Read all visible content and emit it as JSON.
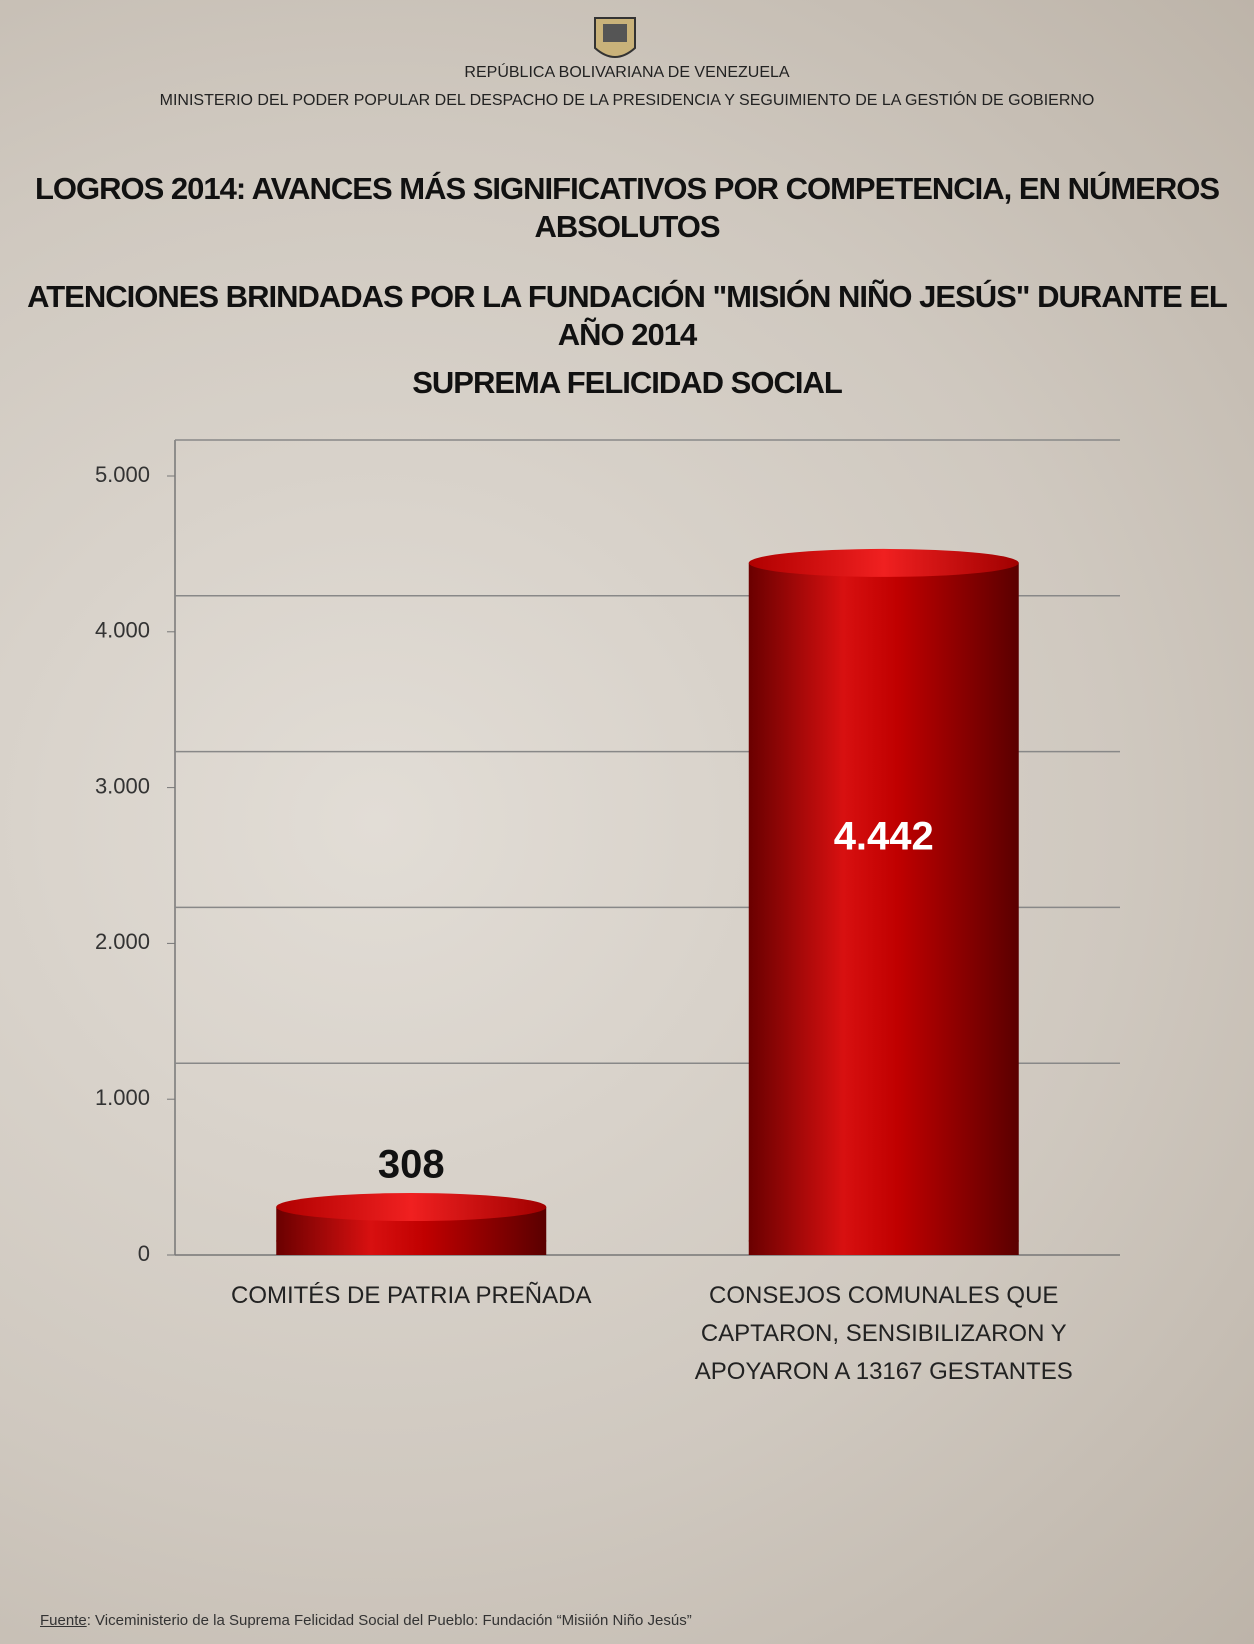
{
  "header": {
    "country": "REPÚBLICA BOLIVARIANA DE VENEZUELA",
    "ministry": "MINISTERIO DEL PODER POPULAR DEL DESPACHO DE LA PRESIDENCIA Y SEGUIMIENTO DE LA GESTIÓN DE GOBIERNO"
  },
  "chart_data": {
    "type": "bar",
    "title": "LOGROS 2014: AVANCES MÁS SIGNIFICATIVOS POR COMPETENCIA, EN NÚMEROS ABSOLUTOS",
    "subtitle": "ATENCIONES BRINDADAS POR LA FUNDACIÓN \"MISIÓN NIÑO JESÚS\" DURANTE EL AÑO 2014",
    "subtitle2": "SUPREMA FELICIDAD SOCIAL",
    "categories": [
      "COMITÉS DE PATRIA PREÑADA",
      "CONSEJOS COMUNALES QUE CAPTARON, SENSIBILIZARON Y APOYARON A 13167 GESTANTES"
    ],
    "values": [
      308,
      4442
    ],
    "value_labels": [
      "308",
      "4.442"
    ],
    "color": "#c00000",
    "ylim": [
      0,
      5000
    ],
    "yticks": [
      0,
      {
        "value": 1000,
        "label": "1.000"
      },
      {
        "value": 2000,
        "label": "2.000"
      },
      {
        "value": 3000,
        "label": "3.000"
      },
      {
        "value": 4000,
        "label": "4.000"
      },
      {
        "value": 5000,
        "label": "5.000"
      }
    ],
    "grid": true
  },
  "footer": {
    "source_label": "Fuente",
    "text": ": Viceministerio de la Suprema Felicidad Social del Pueblo: Fundación “Misiión Niño Jesús”"
  }
}
